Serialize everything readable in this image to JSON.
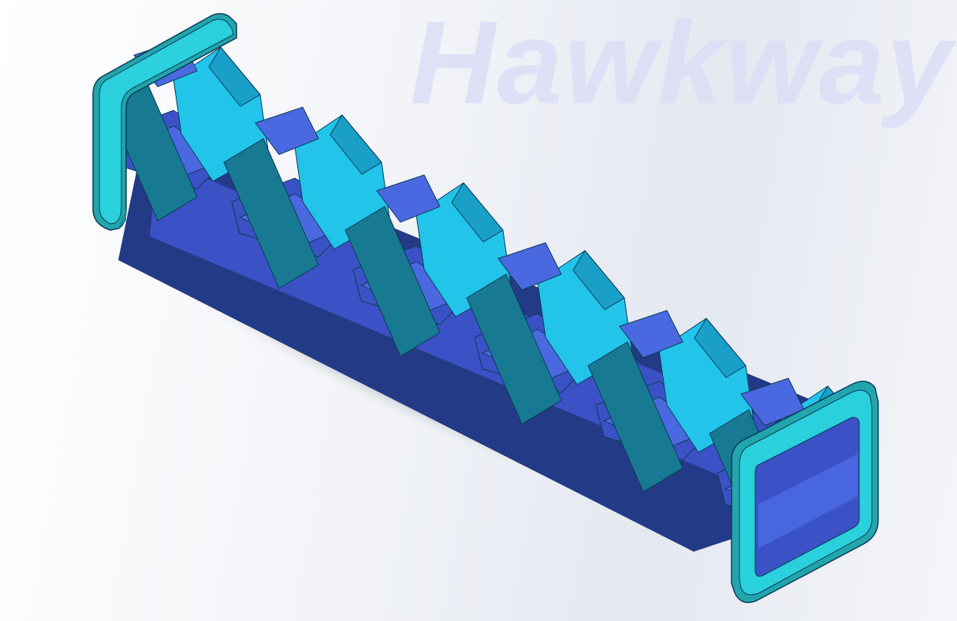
{
  "watermark": {
    "text": "Hawkway"
  },
  "model": {
    "colors": {
      "frame_face": "#2ad0dc",
      "frame_side": "#22a6ad",
      "fin_light": "#22c4ea",
      "fin_mid": "#1aa0c8",
      "fin_teal": "#177a92",
      "fin_blue": "#4a69e0",
      "fin_royal": "#3b52c6",
      "fin_navy": "#233a86",
      "edge": "#0d3b5a",
      "shadow": "#3a3e44"
    }
  }
}
